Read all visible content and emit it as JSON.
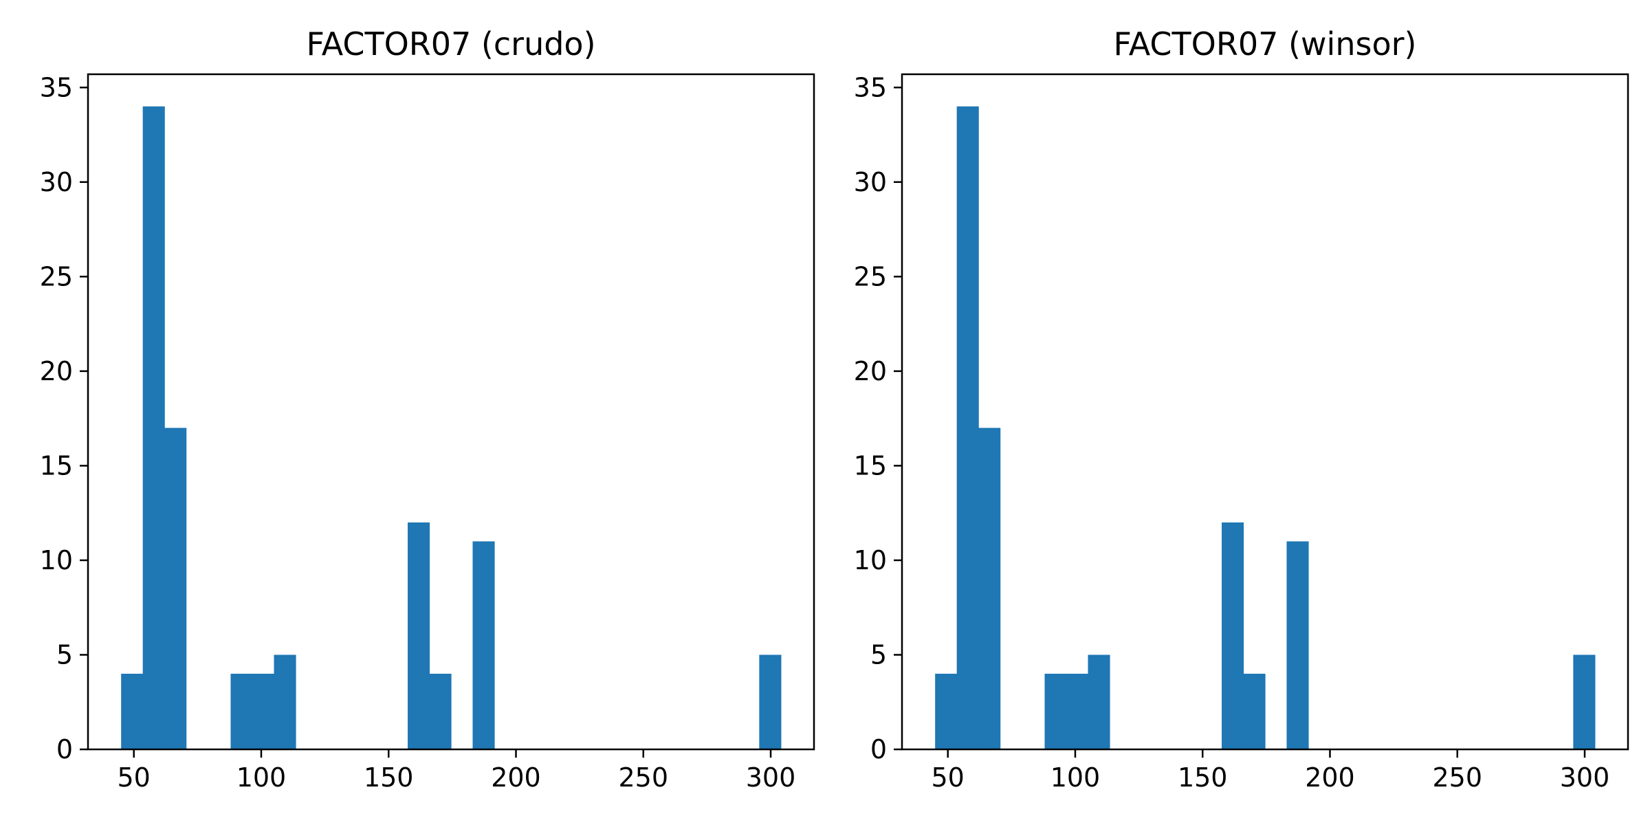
{
  "chart_data": [
    {
      "type": "bar",
      "title": "FACTOR07 (crudo)",
      "xlabel": "",
      "ylabel": "",
      "xlim": [
        32,
        317
      ],
      "ylim": [
        0,
        35.7
      ],
      "xticks": [
        50,
        100,
        150,
        200,
        250,
        300
      ],
      "yticks": [
        0,
        5,
        10,
        15,
        20,
        25,
        30,
        35
      ],
      "bin_width": 8.5,
      "bins": [
        {
          "start": 45.0,
          "value": 4
        },
        {
          "start": 53.5,
          "value": 34
        },
        {
          "start": 62.0,
          "value": 17
        },
        {
          "start": 88.0,
          "value": 4
        },
        {
          "start": 96.5,
          "value": 4
        },
        {
          "start": 105.0,
          "value": 5
        },
        {
          "start": 157.5,
          "value": 12
        },
        {
          "start": 166.0,
          "value": 4
        },
        {
          "start": 183.0,
          "value": 11
        },
        {
          "start": 295.5,
          "value": 5
        }
      ],
      "color": "#1f77b4",
      "grid": false
    },
    {
      "type": "bar",
      "title": "FACTOR07 (winsor)",
      "xlabel": "",
      "ylabel": "",
      "xlim": [
        32,
        317
      ],
      "ylim": [
        0,
        35.7
      ],
      "xticks": [
        50,
        100,
        150,
        200,
        250,
        300
      ],
      "yticks": [
        0,
        5,
        10,
        15,
        20,
        25,
        30,
        35
      ],
      "bin_width": 8.5,
      "bins": [
        {
          "start": 45.0,
          "value": 4
        },
        {
          "start": 53.5,
          "value": 34
        },
        {
          "start": 62.0,
          "value": 17
        },
        {
          "start": 88.0,
          "value": 4
        },
        {
          "start": 96.5,
          "value": 4
        },
        {
          "start": 105.0,
          "value": 5
        },
        {
          "start": 157.5,
          "value": 12
        },
        {
          "start": 166.0,
          "value": 4
        },
        {
          "start": 183.0,
          "value": 11
        },
        {
          "start": 295.5,
          "value": 5
        }
      ],
      "color": "#1f77b4",
      "grid": false
    }
  ]
}
